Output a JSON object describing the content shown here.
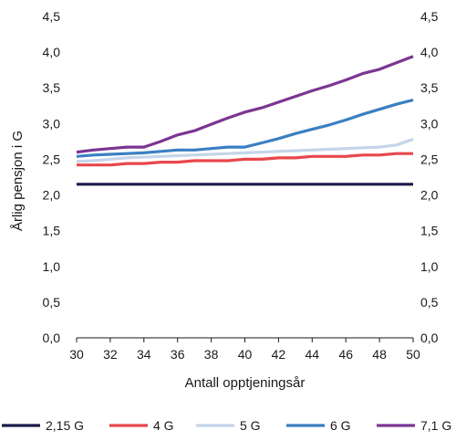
{
  "chart_data": {
    "type": "line",
    "title": "",
    "xlabel": "Antall opptjeningsår",
    "ylabel": "Årlig pensjon i G",
    "xlim": [
      30,
      50
    ],
    "ylim": [
      0,
      4.5
    ],
    "x_ticks": [
      30,
      32,
      34,
      36,
      38,
      40,
      42,
      44,
      46,
      48,
      50
    ],
    "x_tick_labels": [
      "30",
      "32",
      "34",
      "36",
      "38",
      "40",
      "42",
      "44",
      "46",
      "48",
      "50"
    ],
    "y_ticks": [
      0,
      0.5,
      1,
      1.5,
      2,
      2.5,
      3,
      3.5,
      4,
      4.5
    ],
    "y_tick_labels": [
      "0,0",
      "0,5",
      "1,0",
      "1,5",
      "2,0",
      "2,5",
      "3,0",
      "3,5",
      "4,0",
      "4,5"
    ],
    "right_axis_mirrored": true,
    "grid": false,
    "legend_position": "bottom",
    "x": [
      30,
      31,
      32,
      33,
      34,
      35,
      36,
      37,
      38,
      39,
      40,
      41,
      42,
      43,
      44,
      45,
      46,
      47,
      48,
      49,
      50
    ],
    "series": [
      {
        "name": "2,15 G",
        "color": "#1b1a4a",
        "values": [
          2.15,
          2.15,
          2.15,
          2.15,
          2.15,
          2.15,
          2.15,
          2.15,
          2.15,
          2.15,
          2.15,
          2.15,
          2.15,
          2.15,
          2.15,
          2.15,
          2.15,
          2.15,
          2.15,
          2.15,
          2.15
        ]
      },
      {
        "name": "4 G",
        "color": "#e8474c",
        "values": [
          2.42,
          2.42,
          2.42,
          2.44,
          2.44,
          2.46,
          2.46,
          2.48,
          2.48,
          2.48,
          2.5,
          2.5,
          2.52,
          2.52,
          2.54,
          2.54,
          2.54,
          2.56,
          2.56,
          2.58,
          2.58
        ]
      },
      {
        "name": "5 G",
        "color": "#c5d5ea",
        "values": [
          2.47,
          2.48,
          2.5,
          2.52,
          2.53,
          2.54,
          2.55,
          2.56,
          2.57,
          2.58,
          2.59,
          2.6,
          2.61,
          2.62,
          2.63,
          2.64,
          2.65,
          2.66,
          2.67,
          2.7,
          2.78
        ]
      },
      {
        "name": "6 G",
        "color": "#3a7fc2",
        "values": [
          2.54,
          2.56,
          2.57,
          2.58,
          2.59,
          2.61,
          2.63,
          2.63,
          2.65,
          2.67,
          2.67,
          2.73,
          2.79,
          2.86,
          2.92,
          2.98,
          3.05,
          3.13,
          3.2,
          3.27,
          3.33
        ]
      },
      {
        "name": "7,1 G",
        "color": "#7c3592",
        "values": [
          2.6,
          2.63,
          2.65,
          2.67,
          2.67,
          2.75,
          2.84,
          2.9,
          2.99,
          3.08,
          3.16,
          3.22,
          3.3,
          3.38,
          3.46,
          3.53,
          3.61,
          3.7,
          3.76,
          3.85,
          3.94
        ]
      }
    ]
  }
}
